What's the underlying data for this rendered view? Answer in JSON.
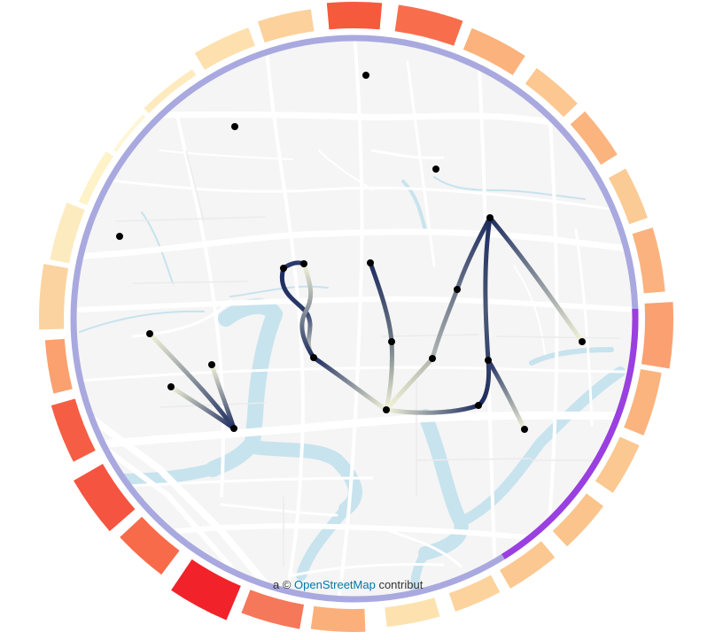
{
  "map": {
    "attribution_prefix": "a © ",
    "attribution_link": "OpenStreetMap",
    "attribution_suffix": " contribut",
    "background_color": "#f5f5f5",
    "road_color": "#ffffff",
    "water_color": "#c7e3ee",
    "ring_color": "#a9a9e0",
    "ring_highlight_color": "#9a3fe0"
  },
  "ring_segments": [
    {
      "color": "#fbd3a0"
    },
    {
      "color": "#fdebc0"
    },
    {
      "color": "#fef2c8"
    },
    {
      "color": "#fef6d4"
    },
    {
      "color": "#fdebbf"
    },
    {
      "color": "#fde0ad"
    },
    {
      "color": "#fcd19b"
    },
    {
      "color": "#f65a3d"
    },
    {
      "color": "#f86e4d"
    },
    {
      "color": "#fbb27c"
    },
    {
      "color": "#fcc790"
    },
    {
      "color": "#fbb47e"
    },
    {
      "color": "#fbcb95"
    },
    {
      "color": "#fbb27e"
    },
    {
      "color": "#fba070"
    },
    {
      "color": "#fbb47e"
    },
    {
      "color": "#fcc891"
    },
    {
      "color": "#fcc48d"
    },
    {
      "color": "#fcc891"
    },
    {
      "color": "#fcd39d"
    },
    {
      "color": "#fde2b0"
    },
    {
      "color": "#fbb07b"
    },
    {
      "color": "#f5785a"
    },
    {
      "color": "#f1222a"
    },
    {
      "color": "#f76b4b"
    },
    {
      "color": "#f55440"
    },
    {
      "color": "#f65d45"
    },
    {
      "color": "#fba06f"
    }
  ],
  "points": [
    {
      "id": "p1"
    },
    {
      "id": "p2"
    },
    {
      "id": "p3"
    },
    {
      "id": "p4"
    },
    {
      "id": "p5"
    },
    {
      "id": "p6"
    },
    {
      "id": "p7"
    },
    {
      "id": "p8"
    },
    {
      "id": "p9"
    },
    {
      "id": "p10"
    },
    {
      "id": "p11"
    },
    {
      "id": "p12"
    },
    {
      "id": "p13"
    },
    {
      "id": "p14"
    },
    {
      "id": "p15"
    },
    {
      "id": "p16"
    },
    {
      "id": "p17"
    },
    {
      "id": "p18"
    },
    {
      "id": "p19"
    },
    {
      "id": "p20"
    },
    {
      "id": "p21"
    }
  ]
}
